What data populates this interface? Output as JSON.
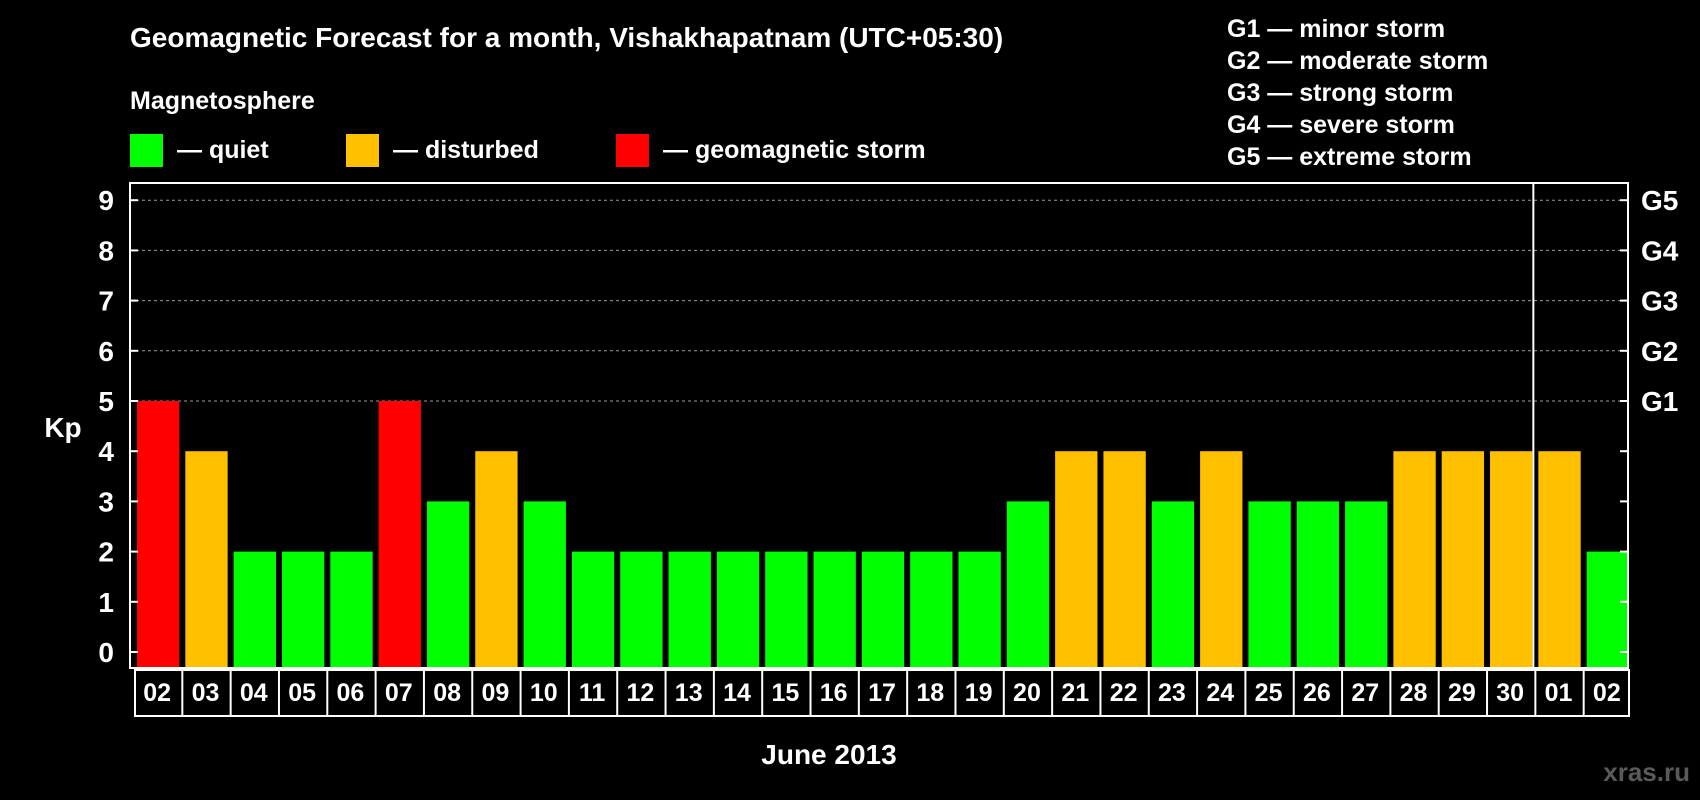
{
  "chart_data": {
    "type": "bar",
    "title": "Geomagnetic Forecast for a month, Vishakhapatnam (UTC+05:30)",
    "legend": {
      "heading": "Magnetosphere",
      "items": [
        {
          "key": "quiet",
          "label": "— quiet",
          "color": "#00FF00"
        },
        {
          "key": "disturbed",
          "label": "— disturbed",
          "color": "#FFC000"
        },
        {
          "key": "storm",
          "label": "— geomagnetic storm",
          "color": "#FF0000"
        }
      ]
    },
    "storm_scale": [
      "G1 — minor storm",
      "G2 — moderate storm",
      "G3 — strong storm",
      "G4 — severe storm",
      "G5 — extreme storm"
    ],
    "ylabel": "Kp",
    "xlabel": "June 2013",
    "ylim": [
      0,
      9
    ],
    "yticks": [
      "0",
      "1",
      "2",
      "3",
      "4",
      "5",
      "6",
      "7",
      "8",
      "9"
    ],
    "right_ticks": [
      {
        "kp": 5,
        "label": "G1"
      },
      {
        "kp": 6,
        "label": "G2"
      },
      {
        "kp": 7,
        "label": "G3"
      },
      {
        "kp": 8,
        "label": "G4"
      },
      {
        "kp": 9,
        "label": "G5"
      }
    ],
    "grid": "dashed at Kp 5-9",
    "month_separator_after_index": 28,
    "categories": [
      "02",
      "03",
      "04",
      "05",
      "06",
      "07",
      "08",
      "09",
      "10",
      "11",
      "12",
      "13",
      "14",
      "15",
      "16",
      "17",
      "18",
      "19",
      "20",
      "21",
      "22",
      "23",
      "24",
      "25",
      "26",
      "27",
      "28",
      "29",
      "30",
      "01",
      "02"
    ],
    "values": [
      5,
      4,
      2,
      2,
      2,
      5,
      3,
      4,
      3,
      2,
      2,
      2,
      2,
      2,
      2,
      2,
      2,
      2,
      3,
      4,
      4,
      3,
      4,
      3,
      3,
      3,
      4,
      4,
      4,
      4,
      2
    ]
  },
  "watermark": "xras.ru"
}
